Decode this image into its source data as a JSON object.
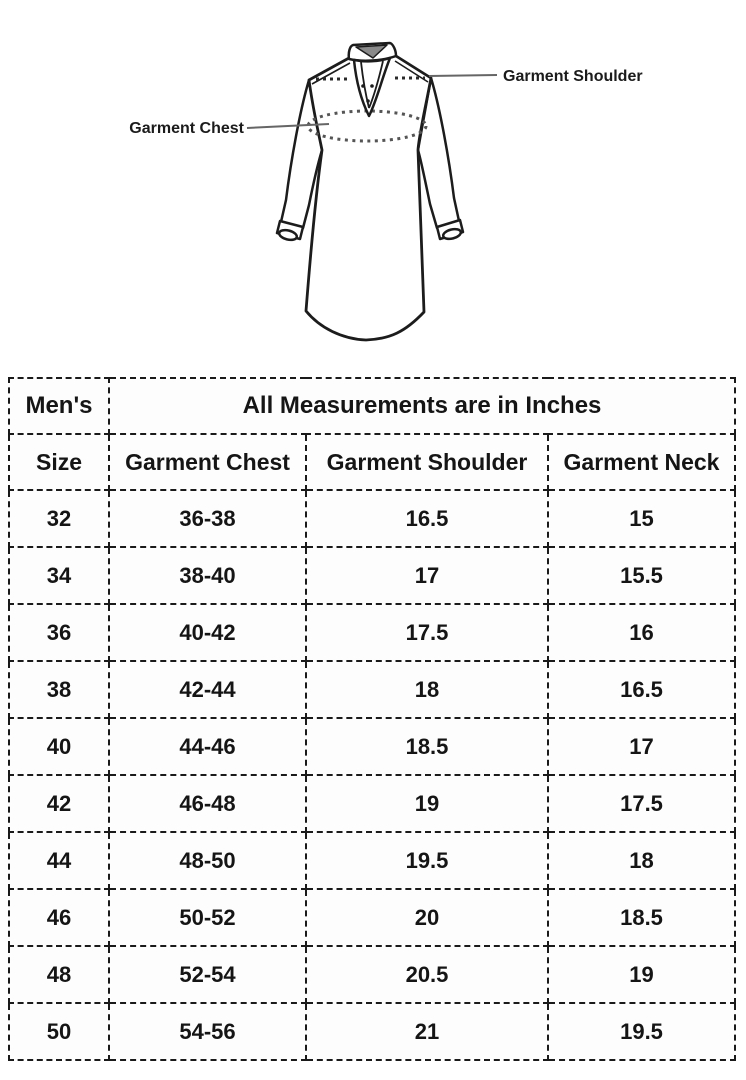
{
  "diagram": {
    "shoulder_label": "Garment Shoulder",
    "chest_label": "Garment Chest"
  },
  "table": {
    "category_label": "Men's",
    "title": "All Measurements are in Inches",
    "columns": [
      "Size",
      "Garment Chest",
      "Garment Shoulder",
      "Garment Neck"
    ],
    "rows": [
      [
        "32",
        "36-38",
        "16.5",
        "15"
      ],
      [
        "34",
        "38-40",
        "17",
        "15.5"
      ],
      [
        "36",
        "40-42",
        "17.5",
        "16"
      ],
      [
        "38",
        "42-44",
        "18",
        "16.5"
      ],
      [
        "40",
        "44-46",
        "18.5",
        "17"
      ],
      [
        "42",
        "46-48",
        "19",
        "17.5"
      ],
      [
        "44",
        "48-50",
        "19.5",
        "18"
      ],
      [
        "46",
        "50-52",
        "20",
        "18.5"
      ],
      [
        "48",
        "52-54",
        "20.5",
        "19"
      ],
      [
        "50",
        "54-56",
        "21",
        "19.5"
      ]
    ]
  },
  "colors": {
    "highlight_yellow": "#fbf500",
    "header_peach": "#fae0d2",
    "border_black": "#1a1a1a",
    "outline_black": "#1c1c1c",
    "leader_gray": "#666666"
  },
  "chart_data": {
    "type": "table",
    "title": "All Measurements are in Inches",
    "category": "Men's",
    "columns": [
      "Size",
      "Garment Chest",
      "Garment Shoulder",
      "Garment Neck"
    ],
    "rows": [
      {
        "size": 32,
        "garment_chest": "36-38",
        "garment_shoulder": 16.5,
        "garment_neck": 15
      },
      {
        "size": 34,
        "garment_chest": "38-40",
        "garment_shoulder": 17,
        "garment_neck": 15.5
      },
      {
        "size": 36,
        "garment_chest": "40-42",
        "garment_shoulder": 17.5,
        "garment_neck": 16
      },
      {
        "size": 38,
        "garment_chest": "42-44",
        "garment_shoulder": 18,
        "garment_neck": 16.5
      },
      {
        "size": 40,
        "garment_chest": "44-46",
        "garment_shoulder": 18.5,
        "garment_neck": 17
      },
      {
        "size": 42,
        "garment_chest": "46-48",
        "garment_shoulder": 19,
        "garment_neck": 17.5
      },
      {
        "size": 44,
        "garment_chest": "48-50",
        "garment_shoulder": 19.5,
        "garment_neck": 18
      },
      {
        "size": 46,
        "garment_chest": "50-52",
        "garment_shoulder": 20,
        "garment_neck": 18.5
      },
      {
        "size": 48,
        "garment_chest": "52-54",
        "garment_shoulder": 20.5,
        "garment_neck": 19
      },
      {
        "size": 50,
        "garment_chest": "54-56",
        "garment_shoulder": 21,
        "garment_neck": 19.5
      }
    ]
  }
}
